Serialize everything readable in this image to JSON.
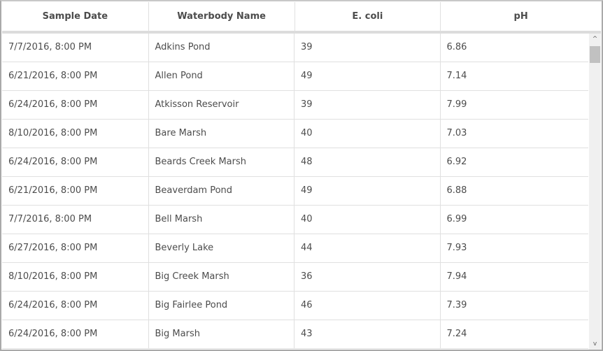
{
  "table": {
    "columns": [
      "Sample Date",
      "Waterbody Name",
      "E. coli",
      "pH"
    ],
    "rows": [
      [
        "7/7/2016, 8:00 PM",
        "Adkins Pond",
        "39",
        "6.86"
      ],
      [
        "6/21/2016, 8:00 PM",
        "Allen Pond",
        "49",
        "7.14"
      ],
      [
        "6/24/2016, 8:00 PM",
        "Atkisson Reservoir",
        "39",
        "7.99"
      ],
      [
        "8/10/2016, 8:00 PM",
        "Bare Marsh",
        "40",
        "7.03"
      ],
      [
        "6/24/2016, 8:00 PM",
        "Beards Creek Marsh",
        "48",
        "6.92"
      ],
      [
        "6/21/2016, 8:00 PM",
        "Beaverdam Pond",
        "49",
        "6.88"
      ],
      [
        "7/7/2016, 8:00 PM",
        "Bell Marsh",
        "40",
        "6.99"
      ],
      [
        "6/27/2016, 8:00 PM",
        "Beverly Lake",
        "44",
        "7.93"
      ],
      [
        "8/10/2016, 8:00 PM",
        "Big Creek Marsh",
        "36",
        "7.94"
      ],
      [
        "6/24/2016, 8:00 PM",
        "Big Fairlee Pond",
        "46",
        "7.39"
      ],
      [
        "6/24/2016, 8:00 PM",
        "Big Marsh",
        "43",
        "7.24"
      ]
    ]
  },
  "scrollbar": {
    "up_icon": "chevron-up-icon",
    "down_icon": "chevron-down-icon",
    "up_glyph": "^",
    "down_glyph": "v",
    "position_percent": 0
  }
}
